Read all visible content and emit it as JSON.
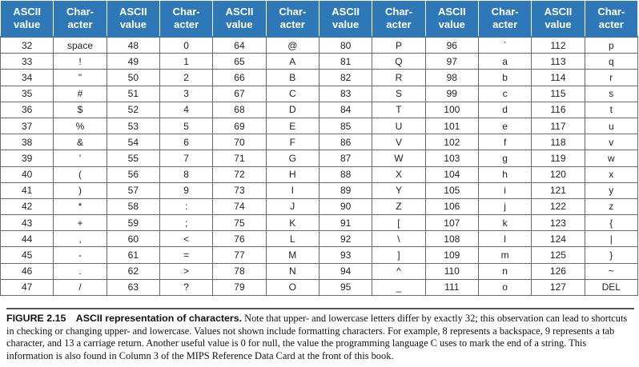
{
  "headers": [
    [
      "ASCII",
      "value"
    ],
    [
      "Char-",
      "acter"
    ],
    [
      "ASCII",
      "value"
    ],
    [
      "Char-",
      "acter"
    ],
    [
      "ASCII",
      "value"
    ],
    [
      "Char-",
      "acter"
    ],
    [
      "ASCII",
      "value"
    ],
    [
      "Char-",
      "acter"
    ],
    [
      "ASCII",
      "value"
    ],
    [
      "Char-",
      "acter"
    ],
    [
      "ASCII",
      "value"
    ],
    [
      "Char-",
      "acter"
    ]
  ],
  "rows": [
    [
      "32",
      "space",
      "48",
      "0",
      "64",
      "@",
      "80",
      "P",
      "96",
      "`",
      "112",
      "p"
    ],
    [
      "33",
      "!",
      "49",
      "1",
      "65",
      "A",
      "81",
      "Q",
      "97",
      "a",
      "113",
      "q"
    ],
    [
      "34",
      "\"",
      "50",
      "2",
      "66",
      "B",
      "82",
      "R",
      "98",
      "b",
      "114",
      "r"
    ],
    [
      "35",
      "#",
      "51",
      "3",
      "67",
      "C",
      "83",
      "S",
      "99",
      "c",
      "115",
      "s"
    ],
    [
      "36",
      "$",
      "52",
      "4",
      "68",
      "D",
      "84",
      "T",
      "100",
      "d",
      "116",
      "t"
    ],
    [
      "37",
      "%",
      "53",
      "5",
      "69",
      "E",
      "85",
      "U",
      "101",
      "e",
      "117",
      "u"
    ],
    [
      "38",
      "&",
      "54",
      "6",
      "70",
      "F",
      "86",
      "V",
      "102",
      "f",
      "118",
      "v"
    ],
    [
      "39",
      "'",
      "55",
      "7",
      "71",
      "G",
      "87",
      "W",
      "103",
      "g",
      "119",
      "w"
    ],
    [
      "40",
      "(",
      "56",
      "8",
      "72",
      "H",
      "88",
      "X",
      "104",
      "h",
      "120",
      "x"
    ],
    [
      "41",
      ")",
      "57",
      "9",
      "73",
      "I",
      "89",
      "Y",
      "105",
      "i",
      "121",
      "y"
    ],
    [
      "42",
      "*",
      "58",
      ":",
      "74",
      "J",
      "90",
      "Z",
      "106",
      "j",
      "122",
      "z"
    ],
    [
      "43",
      "+",
      "59",
      ";",
      "75",
      "K",
      "91",
      "[",
      "107",
      "k",
      "123",
      "{"
    ],
    [
      "44",
      ",",
      "60",
      "<",
      "76",
      "L",
      "92",
      "\\",
      "108",
      "l",
      "124",
      "|"
    ],
    [
      "45",
      "-",
      "61",
      "=",
      "77",
      "M",
      "93",
      "]",
      "109",
      "m",
      "125",
      "}"
    ],
    [
      "46",
      ".",
      "62",
      ">",
      "78",
      "N",
      "94",
      "^",
      "110",
      "n",
      "126",
      "~"
    ],
    [
      "47",
      "/",
      "63",
      "?",
      "79",
      "O",
      "95",
      "_",
      "111",
      "o",
      "127",
      "DEL"
    ]
  ],
  "caption": {
    "label": "FIGURE 2.15",
    "title": "ASCII representation of characters.",
    "body": " Note that upper- and lowercase letters differ by exactly 32; this observation can lead to shortcuts in checking or changing upper- and lowercase. Values not shown include formatting characters. For example, 8 represents a backspace, 9 represents a tab character, and 13 a carriage return. Another useful value is 0 for null, the value the programming language C uses to mark the end of a string. This information is also found in Column 3 of the MIPS Reference Data Card at the front of this book."
  },
  "colors": {
    "header_bg": "#2e78b7",
    "header_text": "#ffffff",
    "grid": "#6a6a6a"
  }
}
